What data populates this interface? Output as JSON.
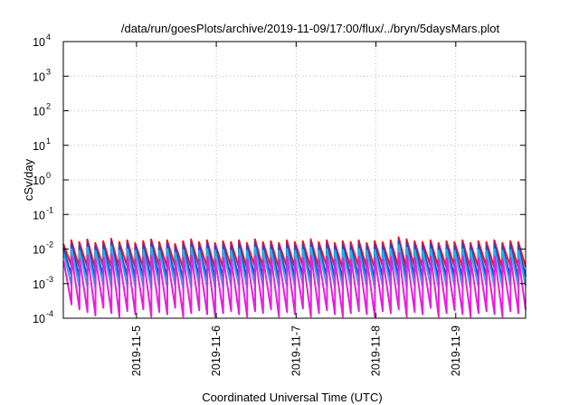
{
  "chart_data": {
    "type": "line",
    "title": "/data/run/goesPlots/archive/2019-11-09/17:00/flux/../bryn/5daysMars.plot",
    "xlabel": "Coordinated Universal Time (UTC)",
    "ylabel": "cSv/day",
    "yscale": "log",
    "ylim": [
      0.0001,
      10000
    ],
    "xlim": [
      "2019-11-04T02:00",
      "2019-11-09T21:00"
    ],
    "grid": true,
    "x_ticks": [
      "2019-11-5",
      "2019-11-6",
      "2019-11-7",
      "2019-11-8",
      "2019-11-9"
    ],
    "y_ticks": [
      {
        "base": "10",
        "exp": "-4"
      },
      {
        "base": "10",
        "exp": "-3"
      },
      {
        "base": "10",
        "exp": "-2"
      },
      {
        "base": "10",
        "exp": "-1"
      },
      {
        "base": "10",
        "exp": "0"
      },
      {
        "base": "10",
        "exp": "1"
      },
      {
        "base": "10",
        "exp": "2"
      },
      {
        "base": "10",
        "exp": "3"
      },
      {
        "base": "10",
        "exp": "4"
      }
    ],
    "sawtooth_period_hours": 2.4,
    "series": [
      {
        "color": "#e8141c",
        "peaks": [
          0.014,
          0.018,
          0.016,
          0.019,
          0.015,
          0.017,
          0.02,
          0.016,
          0.018,
          0.015,
          0.017,
          0.019,
          0.016,
          0.018,
          0.014,
          0.017,
          0.019,
          0.016,
          0.018,
          0.015,
          0.017,
          0.016,
          0.018,
          0.015,
          0.019,
          0.016,
          0.017,
          0.015,
          0.018,
          0.016,
          0.017,
          0.019,
          0.016,
          0.018,
          0.015,
          0.017,
          0.016,
          0.018,
          0.015,
          0.017,
          0.016,
          0.018,
          0.022,
          0.019,
          0.017,
          0.016,
          0.018,
          0.015,
          0.017,
          0.016,
          0.018,
          0.015,
          0.017,
          0.016,
          0.018,
          0.015,
          0.017,
          0.016
        ],
        "troughs": [
          0.0035,
          0.003,
          0.0032,
          0.0028,
          0.0034,
          0.003,
          0.0029,
          0.0033,
          0.003,
          0.0031,
          0.0028,
          0.0032,
          0.003,
          0.0034,
          0.0029,
          0.003,
          0.0033,
          0.0031,
          0.0028,
          0.003,
          0.0032,
          0.003,
          0.0029,
          0.0033,
          0.003,
          0.0031,
          0.0028,
          0.0032,
          0.003,
          0.0034,
          0.0029,
          0.003,
          0.0033,
          0.0031,
          0.0028,
          0.003,
          0.0032,
          0.003,
          0.0029,
          0.0033,
          0.003,
          0.0031,
          0.0028,
          0.0032,
          0.003,
          0.0034,
          0.0029,
          0.003,
          0.0033,
          0.0031,
          0.0028,
          0.003,
          0.0032,
          0.003,
          0.0029,
          0.0033,
          0.003,
          0.0031
        ]
      },
      {
        "color": "#2840d8",
        "peaks": [
          0.011,
          0.014,
          0.012,
          0.015,
          0.012,
          0.013,
          0.016,
          0.012,
          0.014,
          0.012,
          0.013,
          0.015,
          0.012,
          0.014,
          0.011,
          0.013,
          0.015,
          0.012,
          0.014,
          0.012,
          0.013,
          0.012,
          0.014,
          0.012,
          0.015,
          0.012,
          0.013,
          0.012,
          0.014,
          0.012,
          0.013,
          0.015,
          0.012,
          0.014,
          0.012,
          0.013,
          0.012,
          0.014,
          0.012,
          0.013,
          0.012,
          0.014,
          0.017,
          0.015,
          0.013,
          0.012,
          0.014,
          0.012,
          0.013,
          0.012,
          0.014,
          0.012,
          0.013,
          0.012,
          0.014,
          0.012,
          0.013,
          0.012
        ],
        "troughs": [
          0.0018,
          0.0015,
          0.0016,
          0.0014,
          0.0017,
          0.0015,
          0.0014,
          0.0016,
          0.0015,
          0.0016,
          0.0014,
          0.0016,
          0.0015,
          0.0017,
          0.0014,
          0.0015,
          0.0016,
          0.0015,
          0.0014,
          0.0015,
          0.0016,
          0.0015,
          0.0014,
          0.0016,
          0.0015,
          0.0016,
          0.0014,
          0.0016,
          0.0015,
          0.0017,
          0.0014,
          0.0015,
          0.0016,
          0.0015,
          0.0014,
          0.0015,
          0.0016,
          0.0015,
          0.0014,
          0.0016,
          0.0015,
          0.0016,
          0.0014,
          0.0016,
          0.0015,
          0.0017,
          0.0014,
          0.0015,
          0.0016,
          0.0015,
          0.0014,
          0.0015,
          0.0016,
          0.0015,
          0.0014,
          0.0016,
          0.0015,
          0.0016
        ]
      },
      {
        "color": "#1eb4e6",
        "peaks": [
          0.008,
          0.01,
          0.009,
          0.011,
          0.009,
          0.0095,
          0.012,
          0.009,
          0.01,
          0.009,
          0.0095,
          0.011,
          0.009,
          0.01,
          0.008,
          0.0095,
          0.011,
          0.009,
          0.01,
          0.009,
          0.0095,
          0.009,
          0.01,
          0.009,
          0.011,
          0.009,
          0.0095,
          0.009,
          0.01,
          0.009,
          0.0095,
          0.011,
          0.009,
          0.01,
          0.009,
          0.0095,
          0.009,
          0.01,
          0.009,
          0.0095,
          0.009,
          0.01,
          0.013,
          0.011,
          0.0095,
          0.009,
          0.01,
          0.009,
          0.0095,
          0.009,
          0.01,
          0.009,
          0.0095,
          0.009,
          0.01,
          0.009,
          0.0095,
          0.009
        ],
        "troughs": [
          0.0009,
          0.0008,
          0.00085,
          0.00075,
          0.0009,
          0.0008,
          0.00075,
          0.00085,
          0.0008,
          0.00085,
          0.00075,
          0.00085,
          0.0008,
          0.0009,
          0.00075,
          0.0008,
          0.00085,
          0.0008,
          0.00075,
          0.0008,
          0.00085,
          0.0008,
          0.00075,
          0.00085,
          0.0008,
          0.00085,
          0.00075,
          0.00085,
          0.0008,
          0.0009,
          0.00075,
          0.0008,
          0.00085,
          0.0008,
          0.00075,
          0.0008,
          0.00085,
          0.0008,
          0.00075,
          0.00085,
          0.0008,
          0.00085,
          0.00075,
          0.00085,
          0.0008,
          0.0009,
          0.00075,
          0.0008,
          0.00085,
          0.0008,
          0.00075,
          0.0008,
          0.00085,
          0.0008,
          0.00075,
          0.00085,
          0.0008,
          0.00085
        ]
      },
      {
        "color": "#e81ee0",
        "peaks": [
          0.0045,
          0.006,
          0.005,
          0.0065,
          0.005,
          0.0055,
          0.007,
          0.005,
          0.006,
          0.005,
          0.0055,
          0.0065,
          0.005,
          0.006,
          0.0045,
          0.0055,
          0.0065,
          0.005,
          0.006,
          0.005,
          0.0055,
          0.005,
          0.006,
          0.005,
          0.0065,
          0.005,
          0.0055,
          0.005,
          0.006,
          0.005,
          0.0055,
          0.0065,
          0.005,
          0.006,
          0.005,
          0.0055,
          0.005,
          0.006,
          0.005,
          0.0055,
          0.005,
          0.006,
          0.0075,
          0.0065,
          0.0055,
          0.005,
          0.006,
          0.005,
          0.0055,
          0.005,
          0.006,
          0.005,
          0.0055,
          0.005,
          0.006,
          0.005,
          0.0055,
          0.005
        ],
        "troughs": [
          0.00025,
          0.00018,
          0.00015,
          0.00012,
          0.0002,
          0.00014,
          0.00011,
          0.00016,
          0.00013,
          0.00018,
          0.00011,
          0.00015,
          0.00013,
          0.0002,
          0.00011,
          0.00014,
          0.00017,
          0.00013,
          0.00011,
          0.00014,
          0.00016,
          0.00013,
          0.00011,
          0.00016,
          0.00014,
          0.00018,
          0.00011,
          0.00015,
          0.00013,
          0.00019,
          0.00011,
          0.00014,
          0.00017,
          0.00013,
          0.00011,
          0.00014,
          0.00016,
          0.00013,
          0.00011,
          0.00016,
          0.00014,
          0.00018,
          0.00011,
          0.00015,
          0.00013,
          0.0002,
          0.00011,
          0.00014,
          0.00017,
          0.00013,
          0.00011,
          0.00014,
          0.00016,
          0.00013,
          0.00011,
          0.00016,
          0.00014,
          0.00018
        ]
      }
    ]
  }
}
